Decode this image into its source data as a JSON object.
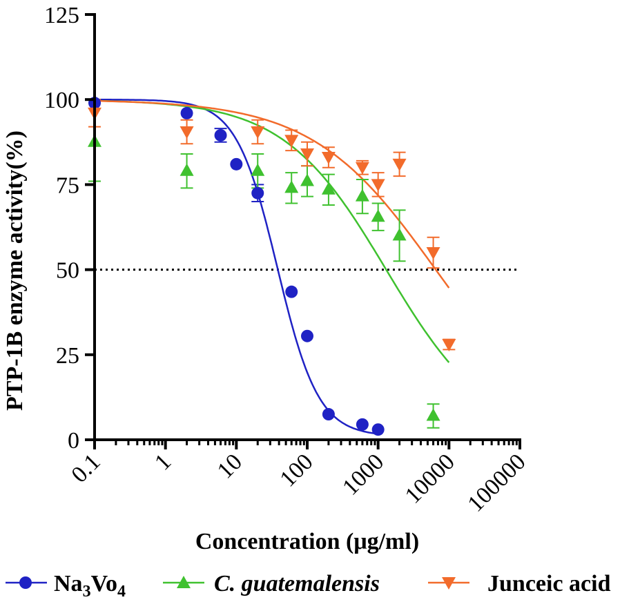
{
  "chart_data": {
    "type": "scatter",
    "x_scale": "log10",
    "xlabel": "Concentration (μg/ml)",
    "ylabel": "PTP-1B enzyme activity(%)",
    "xlim": [
      0.1,
      100000
    ],
    "ylim": [
      0,
      125
    ],
    "x_ticks": [
      "0.1",
      "1",
      "10",
      "100",
      "1000",
      "10000",
      "100000"
    ],
    "y_ticks": [
      "0",
      "25",
      "50",
      "75",
      "100",
      "125"
    ],
    "reference_line": {
      "y": 50,
      "style": "dotted"
    },
    "series": [
      {
        "name": "Na3Vo4",
        "legend_main": "Na",
        "legend_sub1": "3",
        "legend_mid": "Vo",
        "legend_sub2": "4",
        "color": "#1f22c4",
        "marker": "circle",
        "points": [
          {
            "x": 0.1,
            "y": 99,
            "err": 0
          },
          {
            "x": 2,
            "y": 96,
            "err": 0
          },
          {
            "x": 6,
            "y": 89.5,
            "err": 2
          },
          {
            "x": 10,
            "y": 81,
            "err": 0
          },
          {
            "x": 20,
            "y": 72.5,
            "err": 2.5
          },
          {
            "x": 60,
            "y": 43.5,
            "err": 0
          },
          {
            "x": 100,
            "y": 30.5,
            "err": 0
          },
          {
            "x": 200,
            "y": 7.5,
            "err": 0
          },
          {
            "x": 600,
            "y": 4.5,
            "err": 0
          },
          {
            "x": 1000,
            "y": 3,
            "err": 0
          }
        ],
        "fit": {
          "top": 100,
          "bottom": 1,
          "ic50": 38,
          "hill": 1.5,
          "x_from": 0.1,
          "x_to": 1000
        }
      },
      {
        "name": "C. guatemalensis",
        "color": "#3fc12f",
        "marker": "triangle-up",
        "points": [
          {
            "x": 0.1,
            "y": 87.5,
            "err": 11.5
          },
          {
            "x": 2,
            "y": 79,
            "err": 5
          },
          {
            "x": 20,
            "y": 79,
            "err": 5
          },
          {
            "x": 60,
            "y": 74,
            "err": 4.5
          },
          {
            "x": 100,
            "y": 76,
            "err": 4.5
          },
          {
            "x": 200,
            "y": 73.5,
            "err": 4.5
          },
          {
            "x": 600,
            "y": 71.5,
            "err": 5
          },
          {
            "x": 1000,
            "y": 65.5,
            "err": 4
          },
          {
            "x": 2000,
            "y": 60,
            "err": 7.5
          },
          {
            "x": 6000,
            "y": 7,
            "err": 3.5
          }
        ],
        "fit": {
          "top": 100,
          "bottom": 0,
          "ic50": 1300,
          "hill": 0.6,
          "x_from": 0.1,
          "x_to": 10000
        }
      },
      {
        "name": "Junceic acid",
        "color": "#f26b2b",
        "marker": "triangle-down",
        "points": [
          {
            "x": 0.1,
            "y": 96,
            "err": 4
          },
          {
            "x": 2,
            "y": 90.5,
            "err": 3.5
          },
          {
            "x": 20,
            "y": 90.5,
            "err": 3.5
          },
          {
            "x": 60,
            "y": 88,
            "err": 3
          },
          {
            "x": 100,
            "y": 84,
            "err": 3.5
          },
          {
            "x": 200,
            "y": 83,
            "err": 3
          },
          {
            "x": 600,
            "y": 80,
            "err": 2
          },
          {
            "x": 1000,
            "y": 75,
            "err": 3.5
          },
          {
            "x": 2000,
            "y": 81,
            "err": 3.5
          },
          {
            "x": 6000,
            "y": 55,
            "err": 4.5
          },
          {
            "x": 10000,
            "y": 28,
            "err": 1.5
          }
        ],
        "fit": {
          "top": 100,
          "bottom": 0,
          "ic50": 6500,
          "hill": 0.5,
          "x_from": 0.1,
          "x_to": 10000
        }
      }
    ]
  }
}
